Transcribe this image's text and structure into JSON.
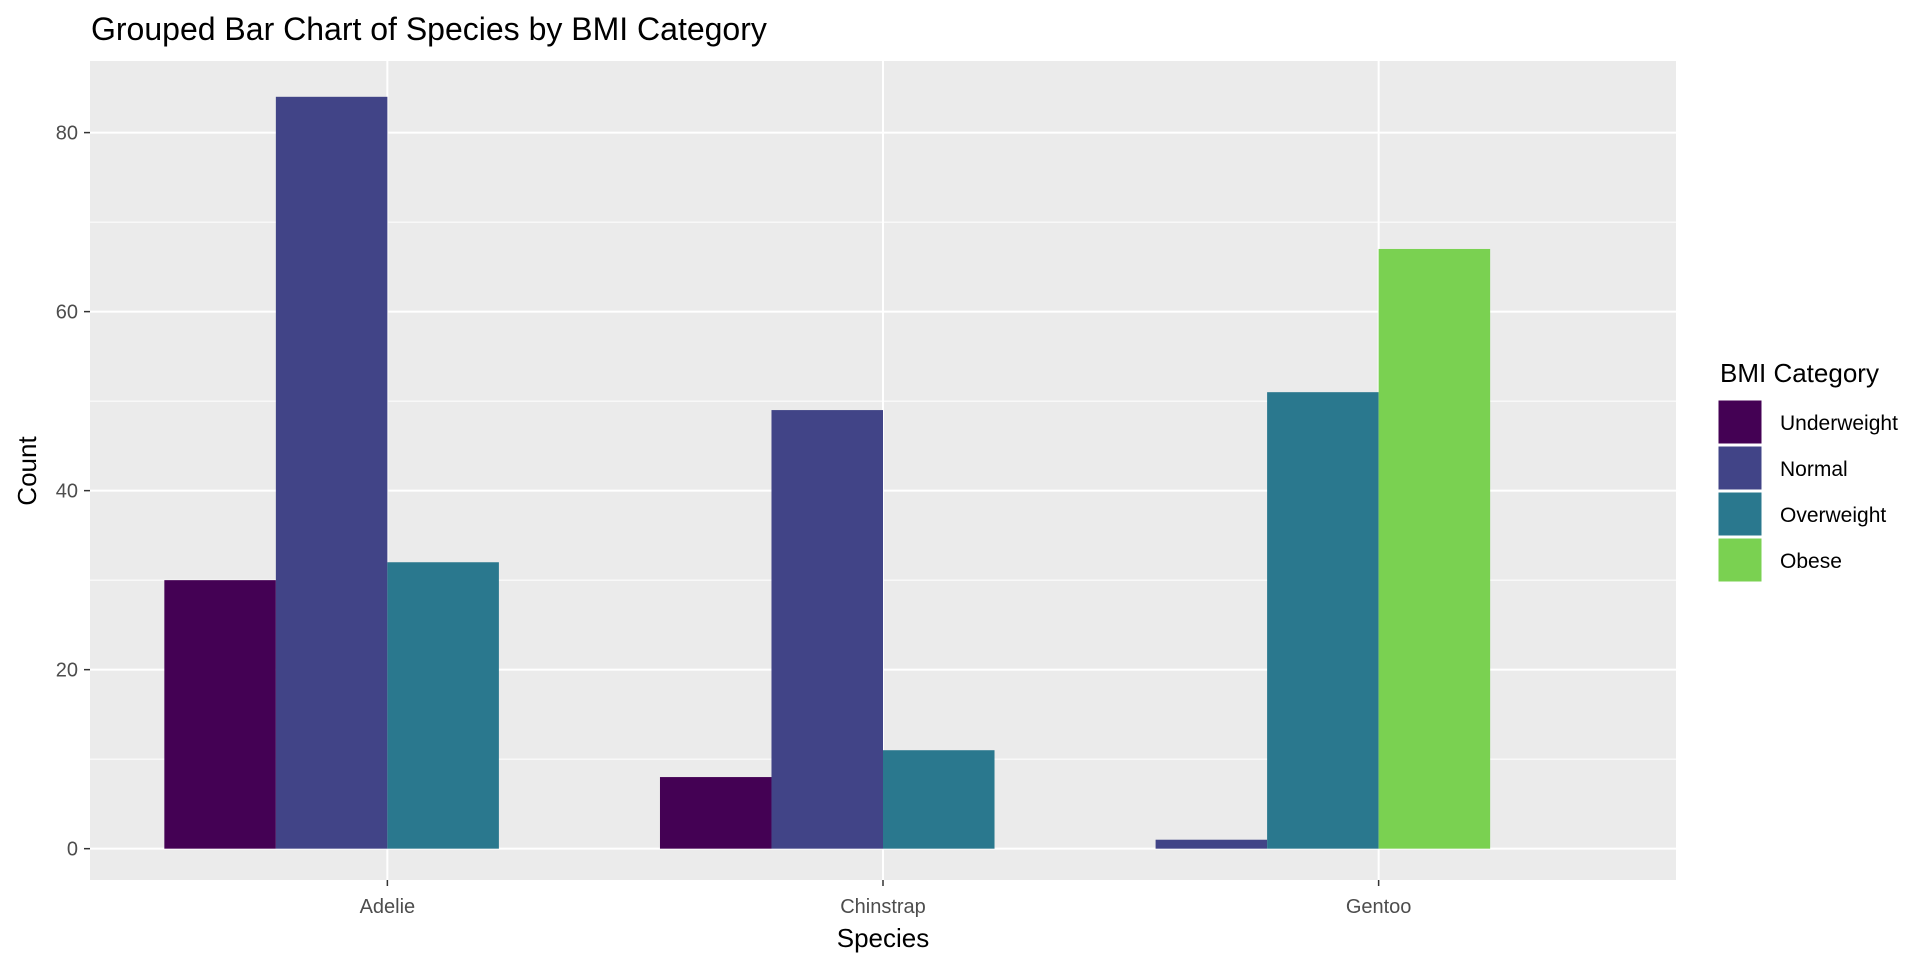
{
  "chart_data": {
    "type": "bar",
    "title": "Grouped Bar Chart of Species by BMI Category",
    "xlabel": "Species",
    "ylabel": "Count",
    "categories": [
      "Adelie",
      "Chinstrap",
      "Gentoo"
    ],
    "ylim": [
      -3.5,
      88
    ],
    "yticks": [
      0,
      20,
      40,
      60,
      80
    ],
    "grid": true,
    "legend": {
      "title": "BMI Category",
      "position": "right"
    },
    "series": [
      {
        "name": "Underweight",
        "color": "#440154",
        "values": [
          30,
          8,
          null
        ]
      },
      {
        "name": "Normal",
        "color": "#414487",
        "values": [
          84,
          49,
          1
        ]
      },
      {
        "name": "Overweight",
        "color": "#2A788E",
        "values": [
          32,
          11,
          51
        ]
      },
      {
        "name": "Obese",
        "color": "#7AD151",
        "values": [
          null,
          null,
          67
        ]
      }
    ]
  }
}
